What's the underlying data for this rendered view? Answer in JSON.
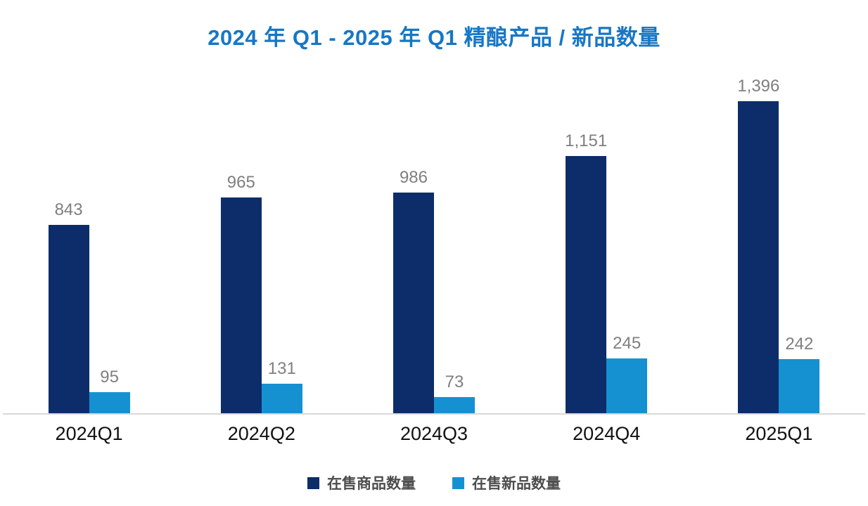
{
  "title": "2024 年 Q1 - 2025 年 Q1 精酿产品 / 新品数量",
  "colors": {
    "title_blue": "#1777c5",
    "series_products": "#0c2d6a",
    "series_new_items": "#1591d2",
    "value_label_gray": "#7f7f7f",
    "axis_line_gray": "#d9d9d9",
    "legend_text_gray": "#4d4d4d"
  },
  "chart_data": {
    "type": "bar",
    "title": "2024 年 Q1 - 2025 年 Q1 精酿产品 / 新品数量",
    "categories": [
      "2024Q1",
      "2024Q2",
      "2024Q3",
      "2024Q4",
      "2025Q1"
    ],
    "series": [
      {
        "name": "在售商品数量",
        "color": "#0c2d6a",
        "values": [
          843,
          965,
          986,
          1151,
          1396
        ],
        "labels": [
          "843",
          "965",
          "986",
          "1,151",
          "1,396"
        ]
      },
      {
        "name": "在售新品数量",
        "color": "#1591d2",
        "values": [
          95,
          131,
          73,
          245,
          242
        ],
        "labels": [
          "95",
          "131",
          "73",
          "245",
          "242"
        ]
      }
    ],
    "xlabel": "",
    "ylabel": "",
    "ylim": [
      0,
      1450
    ],
    "grid": false,
    "y_axis_visible": false,
    "legend_position": "bottom",
    "value_labels": true
  }
}
